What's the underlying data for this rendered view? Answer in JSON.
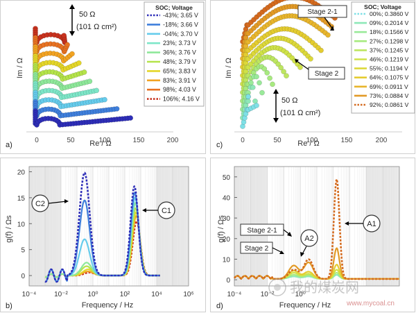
{
  "panel_labels": [
    "a)",
    "b)",
    "c)",
    "d)"
  ],
  "watermark": {
    "text": "我的煤炭网",
    "url": "www.mycoal.cn"
  },
  "chart_data": [
    {
      "id": "a",
      "type": "scatter",
      "xlabel": "Re / Ω",
      "ylabel": "Im / Ω",
      "xlim": [
        -10,
        215
      ],
      "xticks": [
        0,
        50,
        100,
        150,
        200
      ],
      "legend_title": "SOC; Voltage",
      "legend_position": "top-right",
      "scalebar_label": "50 Ω",
      "scalebar_sublabel": "(101 Ω cm²)",
      "series": [
        {
          "name": "-43%; 3.65 V",
          "color": "#2e2eb8",
          "dashed": true,
          "x_end": 138,
          "offset": 0
        },
        {
          "name": "-18%; 3.66 V",
          "color": "#3f7fdc",
          "dashed": false,
          "x_end": 118,
          "offset": 1
        },
        {
          "name": "-04%; 3.70 V",
          "color": "#66ccec",
          "dashed": false,
          "x_end": 100,
          "offset": 2
        },
        {
          "name": "23%; 3.73 V",
          "color": "#7de6c8",
          "dashed": false,
          "x_end": 88,
          "offset": 3
        },
        {
          "name": "36%; 3.76 V",
          "color": "#8ee89a",
          "dashed": false,
          "x_end": 78,
          "offset": 4
        },
        {
          "name": "48%; 3.79 V",
          "color": "#b5e44a",
          "dashed": false,
          "x_end": 70,
          "offset": 5
        },
        {
          "name": "65%; 3.83 V",
          "color": "#e4d628",
          "dashed": false,
          "x_end": 62,
          "offset": 6
        },
        {
          "name": "83%; 3.91 V",
          "color": "#f2a322",
          "dashed": false,
          "x_end": 52,
          "offset": 7
        },
        {
          "name": "98%; 4.03 V",
          "color": "#e87222",
          "dashed": false,
          "x_end": 45,
          "offset": 8
        },
        {
          "name": "106%; 4.16 V",
          "color": "#c8321e",
          "dashed": true,
          "x_end": 40,
          "offset": 9
        }
      ]
    },
    {
      "id": "b",
      "type": "line",
      "xlabel": "Frequency / Hz",
      "ylabel": "g(f) / Ωs",
      "xscale": "log",
      "xlim": [
        0.0001,
        1000000
      ],
      "ylim": [
        -2,
        21
      ],
      "yticks": [
        0,
        5,
        10,
        15,
        20
      ],
      "xtick_labels": [
        "10⁻⁴",
        "10⁻²",
        "10⁰",
        "10²",
        "10⁴",
        "10⁶"
      ],
      "annotations": [
        "C2",
        "C1"
      ],
      "peaks": [
        {
          "color": "#2e2eb8",
          "dashed": true,
          "low_f": 0.3,
          "low_h": 19.8,
          "high_f": 400,
          "high_h": 17.2
        },
        {
          "color": "#3f7fdc",
          "dashed": false,
          "low_f": 0.3,
          "low_h": 14.5,
          "high_f": 420,
          "high_h": 16.0
        },
        {
          "color": "#66ccec",
          "dashed": false,
          "low_f": 0.3,
          "low_h": 7.0,
          "high_f": 440,
          "high_h": 15.0
        },
        {
          "color": "#8ee89a",
          "dashed": false,
          "low_f": 0.4,
          "low_h": 2.5,
          "high_f": 460,
          "high_h": 14.0
        },
        {
          "color": "#b5e44a",
          "dashed": false,
          "low_f": 0.4,
          "low_h": 1.8,
          "high_f": 480,
          "high_h": 13.0
        },
        {
          "color": "#e4d628",
          "dashed": false,
          "low_f": 0.5,
          "low_h": 1.2,
          "high_f": 500,
          "high_h": 12.2
        },
        {
          "color": "#f2a322",
          "dashed": false,
          "low_f": 0.5,
          "low_h": 0.8,
          "high_f": 520,
          "high_h": 11.5
        },
        {
          "color": "#c8321e",
          "dashed": true,
          "low_f": 0.6,
          "low_h": 0.6,
          "high_f": 550,
          "high_h": 10.5
        }
      ]
    },
    {
      "id": "c",
      "type": "scatter",
      "xlabel": "Re / Ω",
      "ylabel": "Im / Ω",
      "xlim": [
        -10,
        215
      ],
      "xticks": [
        0,
        50,
        100,
        150,
        200
      ],
      "legend_title": "SOC; Voltage",
      "legend_position": "top-right",
      "scalebar_label": "50 Ω",
      "scalebar_sublabel": "(101 Ω cm²)",
      "annotations": [
        "Stage 2-1",
        "Stage 2"
      ],
      "series": [
        {
          "name": "00%; 0.3860 V",
          "color": "#7fe0e6",
          "dashed": true,
          "arc_w": 0,
          "offset": 0
        },
        {
          "name": "09%; 0.2014 V",
          "color": "#8ee8b8",
          "dashed": false,
          "arc_w": 10,
          "offset": 1
        },
        {
          "name": "18%; 0.1566 V",
          "color": "#9aea9a",
          "dashed": false,
          "arc_w": 20,
          "offset": 2
        },
        {
          "name": "27%; 0.1298 V",
          "color": "#a8ea80",
          "dashed": false,
          "arc_w": 35,
          "offset": 3
        },
        {
          "name": "37%; 0.1245 V",
          "color": "#bde660",
          "dashed": false,
          "arc_w": 55,
          "offset": 4
        },
        {
          "name": "46%; 0.1219 V",
          "color": "#cfe248",
          "dashed": false,
          "arc_w": 75,
          "offset": 5
        },
        {
          "name": "55%; 0.1194 V",
          "color": "#dcd83a",
          "dashed": false,
          "arc_w": 90,
          "offset": 6
        },
        {
          "name": "64%; 0.1075 V",
          "color": "#e4cc30",
          "dashed": false,
          "arc_w": 105,
          "offset": 7
        },
        {
          "name": "69%; 0.0911 V",
          "color": "#e8b52c",
          "dashed": false,
          "arc_w": 115,
          "offset": 8
        },
        {
          "name": "73%; 0.0884 V",
          "color": "#e29a26",
          "dashed": false,
          "arc_w": 120,
          "offset": 9
        },
        {
          "name": "92%; 0.0861 V",
          "color": "#d46a1e",
          "dashed": true,
          "arc_w": 125,
          "offset": 10
        }
      ]
    },
    {
      "id": "d",
      "type": "line",
      "xlabel": "Frequency / Hz",
      "ylabel": "g(f) / Ωs",
      "xscale": "log",
      "xlim": [
        0.0001,
        1000000
      ],
      "ylim": [
        -3,
        55
      ],
      "yticks": [
        0,
        10,
        20,
        30,
        40,
        50
      ],
      "xtick_labels": [
        "10⁻⁴",
        "10⁻²",
        "10⁰"
      ],
      "annotations": [
        "Stage 2-1",
        "Stage 2",
        "A2",
        "A1"
      ],
      "peaks": [
        {
          "color": "#d46a1e",
          "dashed": true,
          "a1_h": 48.5,
          "a2_h": 9.5,
          "s_h": 4.5
        },
        {
          "color": "#e29a26",
          "dashed": false,
          "a1_h": 15.0,
          "a2_h": 8.0,
          "s_h": 6.5
        },
        {
          "color": "#e4cc30",
          "dashed": false,
          "a1_h": 7.0,
          "a2_h": 3.5,
          "s_h": 4.0
        },
        {
          "color": "#cfe248",
          "dashed": false,
          "a1_h": 4.5,
          "a2_h": 2.5,
          "s_h": 3.0
        },
        {
          "color": "#a8ea80",
          "dashed": false,
          "a1_h": 3.0,
          "a2_h": 1.8,
          "s_h": 2.0
        },
        {
          "color": "#8ee8b8",
          "dashed": false,
          "a1_h": 2.0,
          "a2_h": 1.2,
          "s_h": 1.2
        }
      ]
    }
  ]
}
